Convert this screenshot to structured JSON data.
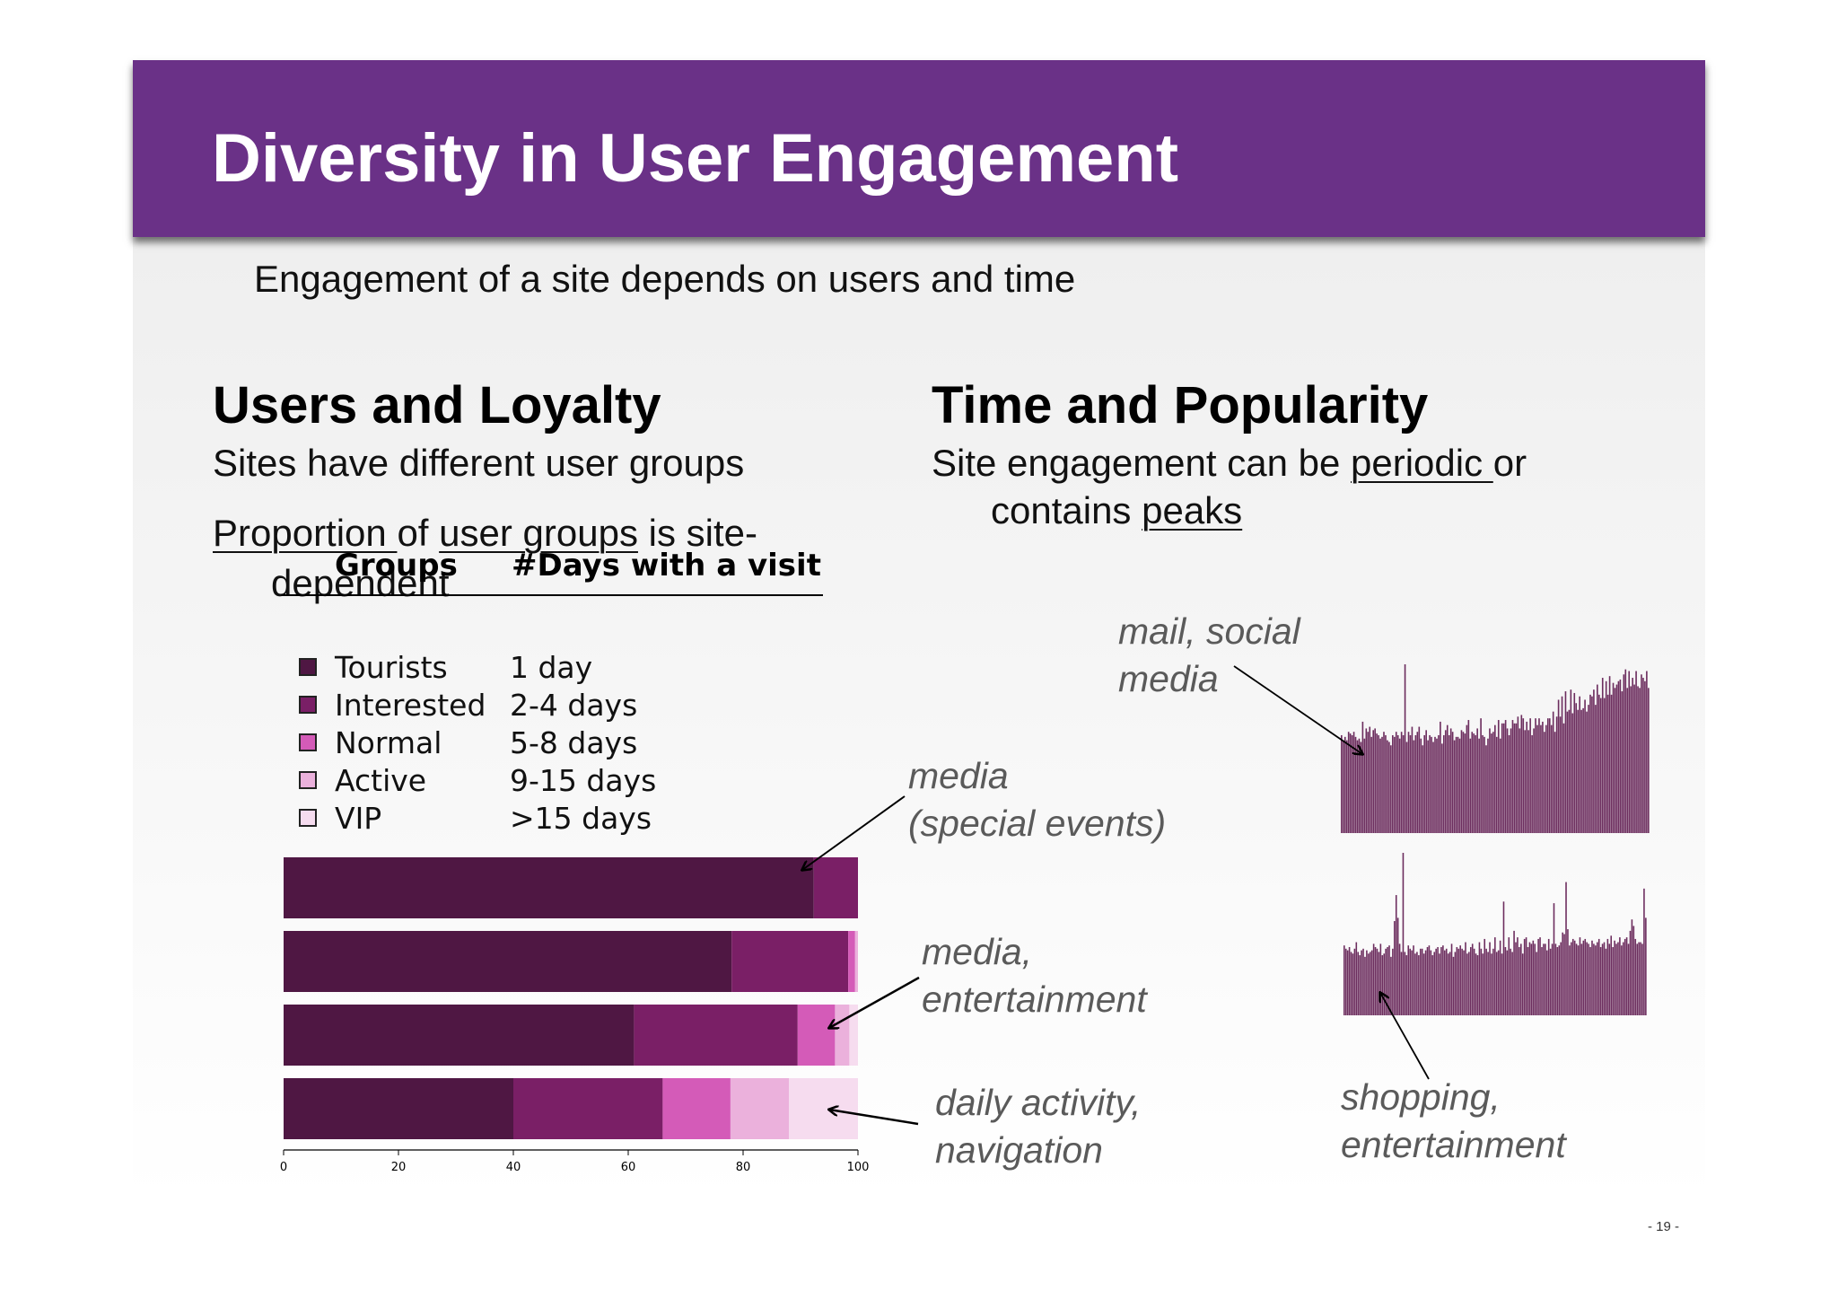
{
  "slide": {
    "title": "Diversity in User Engagement",
    "subtitle": "Engagement of a site depends on users and time",
    "page_number": "- 19 -"
  },
  "left_column": {
    "heading": "Users and Loyalty",
    "line1": "Sites have different user groups",
    "line2_a": "Proportion ",
    "line2_b": "of ",
    "line2_c": "user groups",
    "line2_d": " is site-",
    "line3": "dependent"
  },
  "right_column": {
    "heading": "Time and Popularity",
    "line1_a": "Site engagement can be ",
    "line1_b": "periodic ",
    "line1_c": "or",
    "line2_a": "contains ",
    "line2_b": "peaks"
  },
  "legend": {
    "col_groups": "Groups",
    "col_days": "#Days with a visit",
    "rows": [
      {
        "group": "Tourists",
        "days": "1 day",
        "color": "#4f1743"
      },
      {
        "group": "Interested",
        "days": "2-4 days",
        "color": "#7a1f66"
      },
      {
        "group": "Normal",
        "days": "5-8 days",
        "color": "#d45bb8"
      },
      {
        "group": "Active",
        "days": "9-15 days",
        "color": "#ebb1dc"
      },
      {
        "group": "VIP",
        "days": ">15 days",
        "color": "#f6dcef"
      }
    ]
  },
  "callouts": {
    "media_special_1": "media",
    "media_special_2": "(special events)",
    "media_ent_1": "media,",
    "media_ent_2": "entertainment",
    "daily_1": "daily activity,",
    "daily_2": "navigation",
    "mail_1": "mail, social",
    "mail_2": "media",
    "shopping_1": "shopping,",
    "shopping_2": "entertainment"
  },
  "chart_data": [
    {
      "type": "bar",
      "orientation": "horizontal-stacked",
      "xlim": [
        0,
        100
      ],
      "x_ticks": [
        "0",
        "20",
        "40",
        "60",
        "80",
        "100"
      ],
      "series_names": [
        "Tourists",
        "Interested",
        "Normal",
        "Active",
        "VIP"
      ],
      "colors": [
        "#4f1743",
        "#7a1f66",
        "#d45bb8",
        "#ebb1dc",
        "#f6dcef"
      ],
      "bars": [
        {
          "values": [
            92.3,
            7.7,
            0,
            0,
            0
          ]
        },
        {
          "values": [
            78,
            20.3,
            1.2,
            0.5,
            0
          ]
        },
        {
          "values": [
            61,
            28.5,
            6.5,
            2.5,
            1.5
          ]
        },
        {
          "values": [
            40,
            26,
            11.8,
            10.2,
            12
          ]
        }
      ]
    },
    {
      "type": "bar",
      "label": "mail, social media",
      "color": "#6c2d5e",
      "values": [
        58,
        55,
        57,
        55,
        60,
        59,
        58,
        60,
        57,
        55,
        56,
        54,
        66,
        56,
        62,
        60,
        63,
        57,
        61,
        62,
        59,
        58,
        56,
        57,
        60,
        58,
        55,
        54,
        52,
        58,
        57,
        60,
        58,
        56,
        60,
        58,
        100,
        54,
        60,
        58,
        63,
        55,
        58,
        60,
        63,
        56,
        52,
        58,
        61,
        55,
        58,
        57,
        54,
        57,
        56,
        58,
        66,
        53,
        58,
        61,
        64,
        58,
        62,
        60,
        55,
        57,
        57,
        56,
        61,
        60,
        59,
        64,
        67,
        56,
        60,
        59,
        58,
        62,
        56,
        68,
        58,
        57,
        52,
        56,
        62,
        59,
        60,
        64,
        57,
        67,
        56,
        65,
        65,
        67,
        62,
        58,
        62,
        67,
        65,
        65,
        69,
        62,
        70,
        68,
        61,
        66,
        61,
        68,
        58,
        62,
        68,
        64,
        68,
        64,
        66,
        60,
        64,
        68,
        68,
        64,
        72,
        60,
        69,
        79,
        69,
        81,
        65,
        84,
        72,
        73,
        85,
        71,
        83,
        77,
        73,
        81,
        73,
        74,
        79,
        72,
        76,
        82,
        81,
        85,
        76,
        88,
        82,
        80,
        92,
        80,
        90,
        82,
        93,
        82,
        89,
        86,
        88,
        90,
        91,
        84,
        94,
        97,
        86,
        96,
        87,
        92,
        88,
        96,
        87,
        86,
        94,
        92,
        90,
        96,
        86
      ]
    },
    {
      "type": "bar",
      "label": "shopping, entertainment",
      "color": "#6c2d5e",
      "values": [
        43,
        41,
        40,
        42,
        39,
        38,
        41,
        45,
        39,
        37,
        40,
        41,
        36,
        40,
        38,
        39,
        40,
        44,
        42,
        41,
        39,
        44,
        37,
        38,
        41,
        42,
        43,
        36,
        41,
        58,
        74,
        60,
        44,
        39,
        100,
        39,
        37,
        43,
        41,
        40,
        43,
        38,
        39,
        37,
        41,
        41,
        38,
        40,
        42,
        43,
        40,
        37,
        39,
        41,
        42,
        38,
        42,
        43,
        40,
        41,
        38,
        39,
        44,
        36,
        39,
        42,
        41,
        43,
        41,
        40,
        45,
        38,
        39,
        42,
        44,
        41,
        38,
        37,
        45,
        41,
        38,
        47,
        41,
        39,
        45,
        38,
        41,
        48,
        39,
        40,
        46,
        38,
        70,
        42,
        40,
        48,
        41,
        39,
        52,
        45,
        48,
        42,
        44,
        38,
        47,
        48,
        42,
        45,
        44,
        46,
        44,
        39,
        47,
        48,
        42,
        44,
        44,
        40,
        47,
        41,
        44,
        69,
        44,
        42,
        43,
        45,
        51,
        50,
        82,
        53,
        43,
        45,
        47,
        46,
        44,
        43,
        48,
        44,
        46,
        47,
        45,
        44,
        42,
        46,
        44,
        43,
        45,
        47,
        42,
        44,
        45,
        41,
        47,
        44,
        49,
        42,
        46,
        44,
        45,
        48,
        43,
        45,
        47,
        48,
        44,
        52,
        59,
        55,
        47,
        44,
        45,
        45,
        44,
        78,
        60
      ]
    }
  ]
}
